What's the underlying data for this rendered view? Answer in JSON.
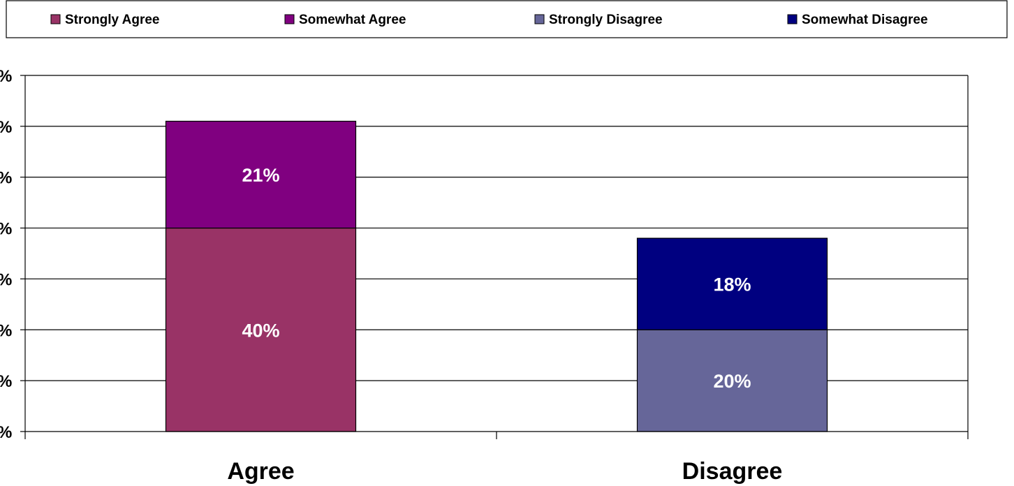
{
  "chart_data": {
    "type": "bar",
    "stacked": true,
    "categories": [
      "Agree",
      "Disagree"
    ],
    "series": [
      {
        "name": "Strongly Agree",
        "color": "#993366",
        "values": [
          40,
          0
        ],
        "labels": [
          "40%",
          ""
        ]
      },
      {
        "name": "Somewhat Agree",
        "color": "#800080",
        "values": [
          21,
          0
        ],
        "labels": [
          "21%",
          ""
        ]
      },
      {
        "name": "Strongly Disagree",
        "color": "#666699",
        "values": [
          0,
          20
        ],
        "labels": [
          "",
          "20%"
        ]
      },
      {
        "name": "Somewhat Disagree",
        "color": "#000080",
        "values": [
          0,
          18
        ],
        "labels": [
          "",
          "18%"
        ]
      }
    ],
    "ylim": [
      0,
      70
    ],
    "yticks": [
      0,
      10,
      20,
      30,
      40,
      50,
      60,
      70
    ],
    "ytick_labels": [
      "%",
      "%",
      "%",
      "%",
      "%",
      "%",
      "%",
      "%"
    ],
    "title": "",
    "xlabel": "",
    "ylabel": "",
    "grid": true,
    "legend_position": "top"
  }
}
